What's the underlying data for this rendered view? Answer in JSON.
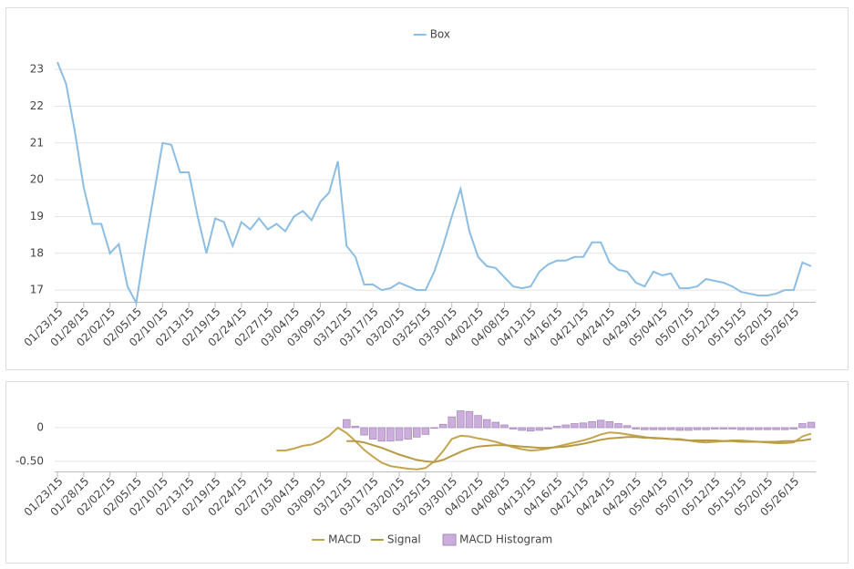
{
  "chart_data": [
    {
      "type": "line",
      "categories": [
        "01/23/15",
        null,
        null,
        "01/28/15",
        null,
        null,
        "02/02/15",
        null,
        null,
        "02/05/15",
        null,
        null,
        "02/10/15",
        null,
        null,
        "02/13/15",
        null,
        null,
        "02/19/15",
        null,
        null,
        "02/24/15",
        null,
        null,
        "02/27/15",
        null,
        null,
        "03/04/15",
        null,
        null,
        "03/09/15",
        null,
        null,
        "03/12/15",
        null,
        null,
        "03/17/15",
        null,
        null,
        "03/20/15",
        null,
        null,
        "03/25/15",
        null,
        null,
        "03/30/15",
        null,
        null,
        "04/02/15",
        null,
        null,
        "04/08/15",
        null,
        null,
        "04/13/15",
        null,
        null,
        "04/16/15",
        null,
        null,
        "04/21/15",
        null,
        null,
        "04/24/15",
        null,
        null,
        "04/29/15",
        null,
        null,
        "05/04/15",
        null,
        null,
        "05/07/15",
        null,
        null,
        "05/12/15",
        null,
        null,
        "05/15/15",
        null,
        null,
        "05/20/15",
        null,
        null,
        "05/26/15",
        null,
        null
      ],
      "series": [
        {
          "name": "Box",
          "color": "#8cbde3",
          "values": [
            23.2,
            22.6,
            21.3,
            19.8,
            18.8,
            18.8,
            18.0,
            18.25,
            17.1,
            16.65,
            18.2,
            19.6,
            21.0,
            20.95,
            20.2,
            20.2,
            19.0,
            18.0,
            18.95,
            18.85,
            18.2,
            18.85,
            18.65,
            18.95,
            18.65,
            18.8,
            18.6,
            19.0,
            19.15,
            18.9,
            19.4,
            19.65,
            20.5,
            18.2,
            17.9,
            17.15,
            17.15,
            17.0,
            17.05,
            17.2,
            17.1,
            17.0,
            17.0,
            17.5,
            18.2,
            19.0,
            19.75,
            18.6,
            17.9,
            17.65,
            17.6,
            17.35,
            17.1,
            17.05,
            17.1,
            17.5,
            17.7,
            17.8,
            17.8,
            17.9,
            17.9,
            18.3,
            18.3,
            17.75,
            17.55,
            17.5,
            17.2,
            17.1,
            17.5,
            17.4,
            17.45,
            17.05,
            17.05,
            17.1,
            17.3,
            17.25,
            17.2,
            17.1,
            16.95,
            16.9,
            16.85,
            16.85,
            16.9,
            17.0,
            17.0,
            17.75,
            17.65
          ]
        }
      ],
      "ylim": [
        16.68,
        23.4
      ],
      "yticks": [
        17,
        18,
        19,
        20,
        21,
        22,
        23
      ],
      "grid": true,
      "legend": "top"
    },
    {
      "type": "combo",
      "categories": [
        "01/23/15",
        null,
        null,
        "01/28/15",
        null,
        null,
        "02/02/15",
        null,
        null,
        "02/05/15",
        null,
        null,
        "02/10/15",
        null,
        null,
        "02/13/15",
        null,
        null,
        "02/19/15",
        null,
        null,
        "02/24/15",
        null,
        null,
        "02/27/15",
        null,
        null,
        "03/04/15",
        null,
        null,
        "03/09/15",
        null,
        null,
        "03/12/15",
        null,
        null,
        "03/17/15",
        null,
        null,
        "03/20/15",
        null,
        null,
        "03/25/15",
        null,
        null,
        "03/30/15",
        null,
        null,
        "04/02/15",
        null,
        null,
        "04/08/15",
        null,
        null,
        "04/13/15",
        null,
        null,
        "04/16/15",
        null,
        null,
        "04/21/15",
        null,
        null,
        "04/24/15",
        null,
        null,
        "04/29/15",
        null,
        null,
        "05/04/15",
        null,
        null,
        "05/07/15",
        null,
        null,
        "05/12/15",
        null,
        null,
        "05/15/15",
        null,
        null,
        "05/20/15",
        null,
        null,
        "05/26/15",
        null,
        null
      ],
      "series": [
        {
          "name": "MACD",
          "type": "line",
          "color": "#c4a54f",
          "values": [
            null,
            null,
            null,
            null,
            null,
            null,
            null,
            null,
            null,
            null,
            null,
            null,
            null,
            null,
            null,
            null,
            null,
            null,
            null,
            null,
            null,
            null,
            null,
            null,
            null,
            -0.34,
            -0.34,
            -0.31,
            -0.27,
            -0.25,
            -0.2,
            -0.12,
            0.0,
            -0.08,
            -0.2,
            -0.33,
            -0.43,
            -0.52,
            -0.57,
            -0.59,
            -0.61,
            -0.62,
            -0.6,
            -0.5,
            -0.35,
            -0.17,
            -0.12,
            -0.13,
            -0.16,
            -0.18,
            -0.21,
            -0.25,
            -0.29,
            -0.32,
            -0.34,
            -0.33,
            -0.31,
            -0.28,
            -0.25,
            -0.22,
            -0.19,
            -0.15,
            -0.1,
            -0.07,
            -0.08,
            -0.1,
            -0.12,
            -0.14,
            -0.16,
            -0.16,
            -0.17,
            -0.17,
            -0.19,
            -0.21,
            -0.22,
            -0.21,
            -0.2,
            -0.19,
            -0.19,
            -0.2,
            -0.21,
            -0.22,
            -0.23,
            -0.23,
            -0.22,
            -0.13,
            -0.09
          ]
        },
        {
          "name": "Signal",
          "type": "line",
          "color": "#b89a45",
          "values": [
            null,
            null,
            null,
            null,
            null,
            null,
            null,
            null,
            null,
            null,
            null,
            null,
            null,
            null,
            null,
            null,
            null,
            null,
            null,
            null,
            null,
            null,
            null,
            null,
            null,
            null,
            null,
            null,
            null,
            null,
            null,
            null,
            null,
            -0.2,
            -0.2,
            -0.22,
            -0.26,
            -0.3,
            -0.35,
            -0.4,
            -0.44,
            -0.48,
            -0.5,
            -0.51,
            -0.48,
            -0.42,
            -0.36,
            -0.31,
            -0.28,
            -0.27,
            -0.26,
            -0.26,
            -0.27,
            -0.28,
            -0.29,
            -0.3,
            -0.3,
            -0.29,
            -0.28,
            -0.26,
            -0.24,
            -0.21,
            -0.18,
            -0.16,
            -0.15,
            -0.14,
            -0.14,
            -0.15,
            -0.15,
            -0.16,
            -0.17,
            -0.18,
            -0.19,
            -0.19,
            -0.19,
            -0.19,
            -0.2,
            -0.2,
            -0.21,
            -0.21,
            -0.21,
            -0.21,
            -0.21,
            -0.2,
            -0.2,
            -0.19,
            -0.17
          ]
        },
        {
          "name": "MACD Histogram",
          "type": "bar",
          "color": "#cbaedb",
          "values": [
            null,
            null,
            null,
            null,
            null,
            null,
            null,
            null,
            null,
            null,
            null,
            null,
            null,
            null,
            null,
            null,
            null,
            null,
            null,
            null,
            null,
            null,
            null,
            null,
            null,
            null,
            null,
            null,
            null,
            null,
            null,
            null,
            null,
            0.12,
            0.02,
            -0.11,
            -0.17,
            -0.2,
            -0.2,
            -0.19,
            -0.17,
            -0.14,
            -0.1,
            -0.01,
            0.05,
            0.16,
            0.25,
            0.24,
            0.18,
            0.12,
            0.08,
            0.04,
            -0.02,
            -0.04,
            -0.05,
            -0.04,
            -0.02,
            0.02,
            0.04,
            0.06,
            0.07,
            0.09,
            0.11,
            0.09,
            0.06,
            0.03,
            -0.02,
            -0.03,
            -0.03,
            -0.03,
            -0.03,
            -0.04,
            -0.04,
            -0.03,
            -0.03,
            -0.02,
            -0.02,
            -0.02,
            -0.03,
            -0.03,
            -0.03,
            -0.03,
            -0.03,
            -0.03,
            -0.02,
            0.06,
            0.08
          ]
        }
      ],
      "ylim": [
        -0.65,
        0.23
      ],
      "yticks": [
        0,
        {
          "value": -0.5,
          "label": "-0.50"
        }
      ],
      "grid": true,
      "legend": "bottom"
    }
  ]
}
